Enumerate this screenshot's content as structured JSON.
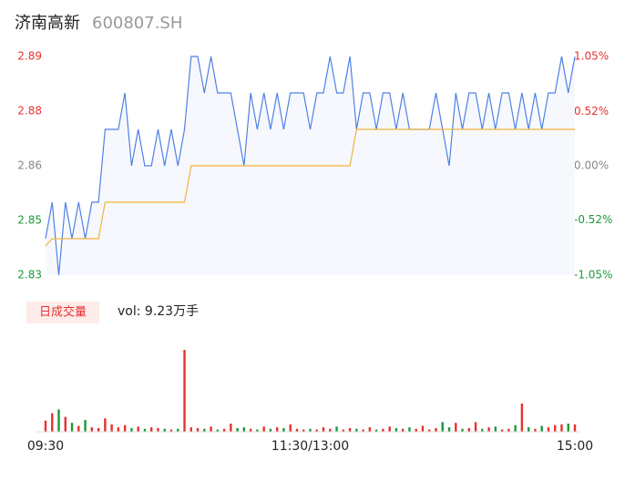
{
  "chart_data": [
    {
      "type": "line",
      "title": "济南高新",
      "subtitle": "600807.SH",
      "x": [
        0,
        3,
        6,
        9,
        12,
        15,
        18,
        21,
        24,
        27,
        30,
        33,
        36,
        39,
        42,
        45,
        48,
        51,
        54,
        57,
        60,
        63,
        66,
        69,
        72,
        75,
        78,
        81,
        84,
        87,
        90,
        93,
        96,
        99,
        102,
        105,
        108,
        111,
        114,
        117,
        120,
        123,
        126,
        129,
        132,
        135,
        138,
        141,
        144,
        147,
        150,
        153,
        156,
        159,
        162,
        165,
        168,
        171,
        174,
        177,
        180,
        183,
        186,
        189,
        192,
        195,
        198,
        201,
        204,
        207,
        210,
        213,
        216,
        219,
        222,
        225,
        228,
        231,
        234,
        237,
        240
      ],
      "xlim": [
        0,
        240
      ],
      "xticks": [
        {
          "value": 0,
          "label": "09:30"
        },
        {
          "value": 120,
          "label": "11:30/13:00"
        },
        {
          "value": 240,
          "label": "15:00"
        }
      ],
      "ylim": [
        2.83,
        2.89
      ],
      "yticks": [
        {
          "value": 2.89,
          "label": "2.89"
        },
        {
          "value": 2.875,
          "label": "2.88"
        },
        {
          "value": 2.86,
          "label": "2.86"
        },
        {
          "value": 2.845,
          "label": "2.85"
        },
        {
          "value": 2.83,
          "label": "2.83"
        }
      ],
      "y2lim": [
        -1.05,
        1.05
      ],
      "y2ticks": [
        {
          "value": 1.05,
          "label": "1.05%"
        },
        {
          "value": 0.52,
          "label": "0.52%"
        },
        {
          "value": 0,
          "label": "0.00%"
        },
        {
          "value": -0.52,
          "label": "-0.52%"
        },
        {
          "value": -1.05,
          "label": "-1.05%"
        }
      ],
      "up_color": "#e8312f",
      "down_color": "#1b9a3a",
      "flat_color": "#888888",
      "series": [
        {
          "color": "#4f81e6",
          "fill": "#f6f8fd",
          "values": [
            2.84,
            2.85,
            2.83,
            2.85,
            2.84,
            2.85,
            2.84,
            2.85,
            2.85,
            2.87,
            2.87,
            2.87,
            2.88,
            2.86,
            2.87,
            2.86,
            2.86,
            2.87,
            2.86,
            2.87,
            2.86,
            2.87,
            2.89,
            2.89,
            2.88,
            2.89,
            2.88,
            2.88,
            2.88,
            2.87,
            2.86,
            2.88,
            2.87,
            2.88,
            2.87,
            2.88,
            2.87,
            2.88,
            2.88,
            2.88,
            2.87,
            2.88,
            2.88,
            2.89,
            2.88,
            2.88,
            2.89,
            2.87,
            2.88,
            2.88,
            2.87,
            2.88,
            2.88,
            2.87,
            2.88,
            2.87,
            2.87,
            2.87,
            2.87,
            2.88,
            2.87,
            2.86,
            2.88,
            2.87,
            2.88,
            2.88,
            2.87,
            2.88,
            2.87,
            2.88,
            2.88,
            2.87,
            2.88,
            2.87,
            2.88,
            2.87,
            2.88,
            2.88,
            2.89,
            2.88,
            2.89
          ]
        },
        {
          "color": "#f2b33d",
          "values": [
            2.838,
            2.84,
            2.84,
            2.84,
            2.84,
            2.84,
            2.84,
            2.84,
            2.84,
            2.85,
            2.85,
            2.85,
            2.85,
            2.85,
            2.85,
            2.85,
            2.85,
            2.85,
            2.85,
            2.85,
            2.85,
            2.85,
            2.86,
            2.86,
            2.86,
            2.86,
            2.86,
            2.86,
            2.86,
            2.86,
            2.86,
            2.86,
            2.86,
            2.86,
            2.86,
            2.86,
            2.86,
            2.86,
            2.86,
            2.86,
            2.86,
            2.86,
            2.86,
            2.86,
            2.86,
            2.86,
            2.86,
            2.87,
            2.87,
            2.87,
            2.87,
            2.87,
            2.87,
            2.87,
            2.87,
            2.87,
            2.87,
            2.87,
            2.87,
            2.87,
            2.87,
            2.87,
            2.87,
            2.87,
            2.87,
            2.87,
            2.87,
            2.87,
            2.87,
            2.87,
            2.87,
            2.87,
            2.87,
            2.87,
            2.87,
            2.87,
            2.87,
            2.87,
            2.87,
            2.87,
            2.87
          ]
        }
      ]
    },
    {
      "type": "bar",
      "title": "日成交量",
      "annotation": "vol: 9.23万手",
      "ylim": [
        0,
        1150
      ],
      "values": [
        150,
        250,
        300,
        200,
        120,
        80,
        160,
        60,
        50,
        180,
        100,
        60,
        90,
        50,
        70,
        40,
        60,
        50,
        40,
        30,
        40,
        1100,
        60,
        50,
        40,
        70,
        30,
        40,
        110,
        50,
        60,
        40,
        30,
        70,
        40,
        60,
        50,
        100,
        40,
        30,
        40,
        30,
        60,
        40,
        70,
        30,
        50,
        40,
        30,
        60,
        30,
        40,
        70,
        50,
        40,
        60,
        40,
        80,
        30,
        50,
        130,
        60,
        120,
        40,
        50,
        130,
        40,
        60,
        70,
        30,
        40,
        90,
        380,
        60,
        40,
        80,
        60,
        90,
        100,
        110,
        100
      ]
    }
  ]
}
